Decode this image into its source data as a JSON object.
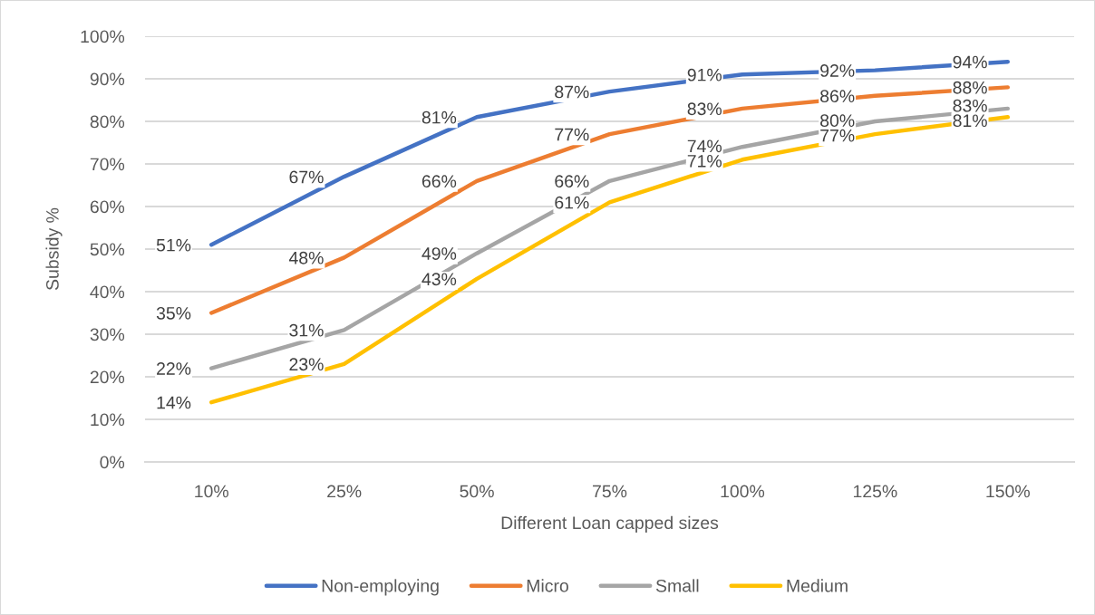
{
  "chart_data": {
    "type": "line",
    "xlabel": "Different Loan capped sizes",
    "ylabel": "Subsidy %",
    "categories": [
      "10%",
      "25%",
      "50%",
      "75%",
      "100%",
      "125%",
      "150%"
    ],
    "series": [
      {
        "name": "Non-employing",
        "color": "#4472c4",
        "values": [
          51,
          67,
          81,
          87,
          91,
          92,
          94
        ],
        "value_labels": [
          "51%",
          "67%",
          "81%",
          "87%",
          "91%",
          "92%",
          "94%"
        ]
      },
      {
        "name": "Micro",
        "color": "#ed7d31",
        "values": [
          35,
          48,
          66,
          77,
          83,
          86,
          88
        ],
        "value_labels": [
          "35%",
          "48%",
          "66%",
          "77%",
          "83%",
          "86%",
          "88%"
        ]
      },
      {
        "name": "Small",
        "color": "#a5a5a5",
        "values": [
          22,
          31,
          49,
          66,
          74,
          80,
          83
        ],
        "value_labels": [
          "22%",
          "31%",
          "49%",
          "66%",
          "74%",
          "80%",
          "83%"
        ]
      },
      {
        "name": "Medium",
        "color": "#ffc000",
        "values": [
          14,
          23,
          43,
          61,
          71,
          77,
          81
        ],
        "value_labels": [
          "14%",
          "23%",
          "43%",
          "61%",
          "71%",
          "77%",
          "81%"
        ]
      }
    ],
    "ylim": [
      0,
      100
    ],
    "yticks": [
      {
        "value": 0,
        "label": "0%"
      },
      {
        "value": 10,
        "label": "10%"
      },
      {
        "value": 20,
        "label": "20%"
      },
      {
        "value": 30,
        "label": "30%"
      },
      {
        "value": 40,
        "label": "40%"
      },
      {
        "value": 50,
        "label": "50%"
      },
      {
        "value": 60,
        "label": "60%"
      },
      {
        "value": 70,
        "label": "70%"
      },
      {
        "value": 80,
        "label": "80%"
      },
      {
        "value": 90,
        "label": "90%"
      },
      {
        "value": 100,
        "label": "100%"
      }
    ],
    "grid": "y",
    "legend": "bottom",
    "marker": "none",
    "line_style": "solid"
  }
}
